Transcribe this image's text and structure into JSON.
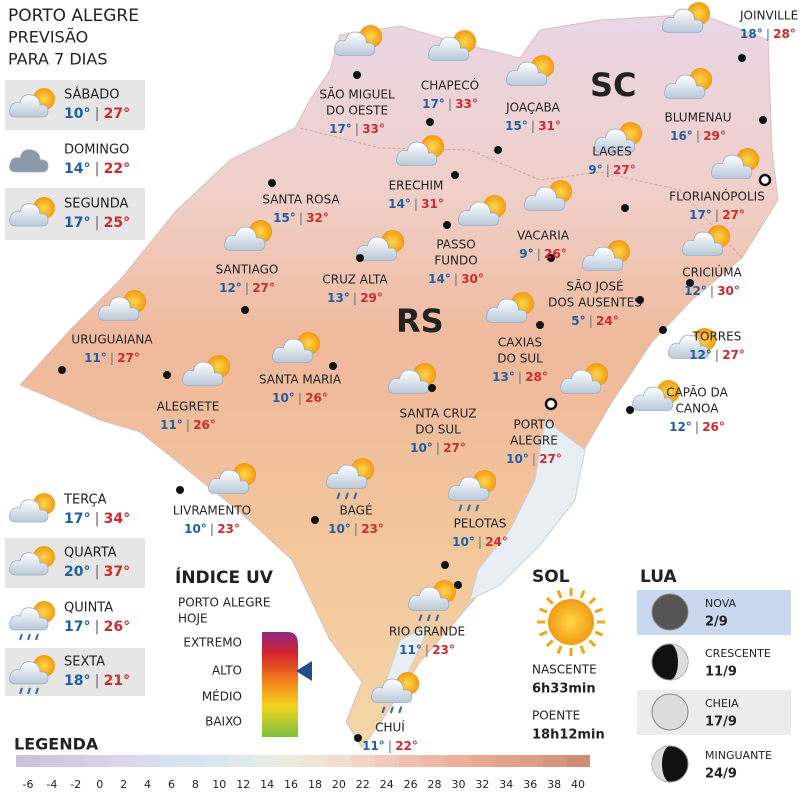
{
  "header": {
    "title": "PORTO ALEGRE",
    "subtitle": [
      "PREVISÃO",
      "PARA 7 DIAS"
    ]
  },
  "forecast": [
    {
      "day": "SÁBADO",
      "min": "10°",
      "max": "27°"
    },
    {
      "day": "DOMINGO",
      "min": "14°",
      "max": "22°"
    },
    {
      "day": "SEGUNDA",
      "min": "17°",
      "max": "25°"
    },
    {
      "day": "TERÇA",
      "min": "17°",
      "max": "34°"
    },
    {
      "day": "QUARTA",
      "min": "20°",
      "max": "37°"
    },
    {
      "day": "QUINTA",
      "min": "17°",
      "max": "26°"
    },
    {
      "day": "SEXTA",
      "min": "18°",
      "max": "21°"
    }
  ],
  "separator": "|",
  "states": [
    "SC",
    "RS"
  ],
  "cities": [
    {
      "name": [
        "SÃO MIGUEL",
        "DO OESTE"
      ],
      "min": "17°",
      "max": "33°"
    },
    {
      "name": [
        "CHAPECÓ"
      ],
      "min": "17°",
      "max": "33°"
    },
    {
      "name": [
        "JOAÇABA"
      ],
      "min": "15°",
      "max": "31°"
    },
    {
      "name": [
        "JOINVILLE"
      ],
      "min": "18°",
      "max": "28°"
    },
    {
      "name": [
        "BLUMENAU"
      ],
      "min": "16°",
      "max": "29°"
    },
    {
      "name": [
        "LAGES"
      ],
      "min": "9°",
      "max": "27°"
    },
    {
      "name": [
        "FLORIANÓPOLIS"
      ],
      "min": "17°",
      "max": "27°"
    },
    {
      "name": [
        "SANTA ROSA"
      ],
      "min": "15°",
      "max": "32°"
    },
    {
      "name": [
        "ERECHIM"
      ],
      "min": "14°",
      "max": "31°"
    },
    {
      "name": [
        "PASSO",
        "FUNDO"
      ],
      "min": "14°",
      "max": "30°"
    },
    {
      "name": [
        "VACARIA"
      ],
      "min": "9°",
      "max": "26°"
    },
    {
      "name": [
        "SANTIAGO"
      ],
      "min": "12°",
      "max": "27°"
    },
    {
      "name": [
        "CRUZ ALTA"
      ],
      "min": "13°",
      "max": "29°"
    },
    {
      "name": [
        "SÃO JOSÉ",
        "DOS AUSENTES"
      ],
      "min": "5°",
      "max": "24°"
    },
    {
      "name": [
        "CRICIÚMA"
      ],
      "min": "12°",
      "max": "30°"
    },
    {
      "name": [
        "URUGUAIANA"
      ],
      "min": "11°",
      "max": "27°"
    },
    {
      "name": [
        "CAXIAS",
        "DO SUL"
      ],
      "min": "13°",
      "max": "28°"
    },
    {
      "name": [
        "TORRES"
      ],
      "min": "12°",
      "max": "27°"
    },
    {
      "name": [
        "SANTA MARIA"
      ],
      "min": "10°",
      "max": "26°"
    },
    {
      "name": [
        "ALEGRETE"
      ],
      "min": "11°",
      "max": "26°"
    },
    {
      "name": [
        "SANTA CRUZ",
        "DO SUL"
      ],
      "min": "10°",
      "max": "27°"
    },
    {
      "name": [
        "CAPÃO DA",
        "CANOA"
      ],
      "min": "12°",
      "max": "26°"
    },
    {
      "name": [
        "PORTO",
        "ALEGRE"
      ],
      "min": "10°",
      "max": "27°"
    },
    {
      "name": [
        "LIVRAMENTO"
      ],
      "min": "10°",
      "max": "23°"
    },
    {
      "name": [
        "BAGÉ"
      ],
      "min": "10°",
      "max": "23°"
    },
    {
      "name": [
        "PELOTAS"
      ],
      "min": "10°",
      "max": "24°"
    },
    {
      "name": [
        "RIO GRANDE"
      ],
      "min": "11°",
      "max": "23°"
    },
    {
      "name": [
        "CHUÍ"
      ],
      "min": "11°",
      "max": "22°"
    }
  ],
  "uv": {
    "title": "ÍNDICE UV",
    "subtitle": [
      "PORTO ALEGRE",
      "HOJE"
    ],
    "levels": [
      "EXTREMO",
      "ALTO",
      "MÉDIO",
      "BAIXO"
    ]
  },
  "sun": {
    "title": "SOL",
    "rise_label": "NASCENTE",
    "rise": "6h33min",
    "set_label": "POENTE",
    "set": "18h12min"
  },
  "moon": {
    "title": "LUA",
    "phases": [
      {
        "name": "NOVA",
        "date": "2/9"
      },
      {
        "name": "CRESCENTE",
        "date": "11/9"
      },
      {
        "name": "CHEIA",
        "date": "17/9"
      },
      {
        "name": "MINGUANTE",
        "date": "24/9"
      }
    ]
  },
  "legend": {
    "title": "LEGENDA",
    "scale": [
      -6,
      -4,
      -2,
      0,
      2,
      4,
      6,
      8,
      10,
      12,
      14,
      16,
      18,
      20,
      22,
      24,
      26,
      28,
      30,
      32,
      34,
      36,
      38,
      40
    ]
  }
}
